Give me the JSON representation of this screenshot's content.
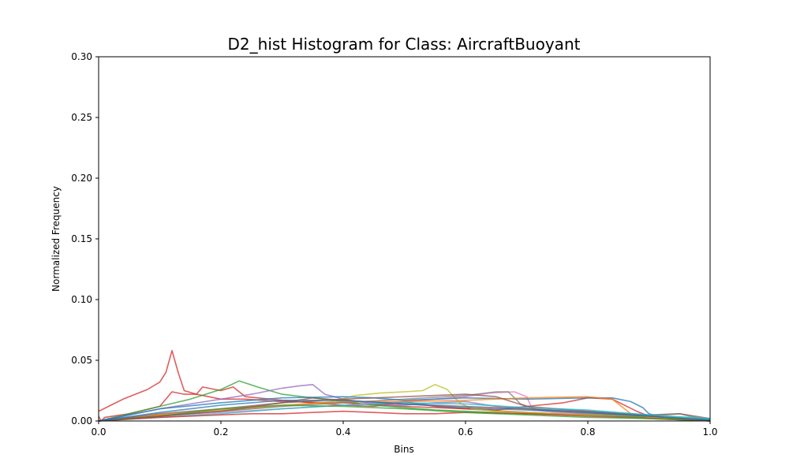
{
  "chart_data": {
    "type": "line",
    "title": "D2_hist Histogram for Class: AircraftBuoyant",
    "xlabel": "Bins",
    "ylabel": "Normalized Frequency",
    "xlim": [
      0.0,
      1.0
    ],
    "ylim": [
      0.0,
      0.3
    ],
    "xticks": [
      "0.0",
      "0.2",
      "0.4",
      "0.6",
      "0.8",
      "1.0"
    ],
    "yticks": [
      "0.00",
      "0.05",
      "0.10",
      "0.15",
      "0.20",
      "0.25",
      "0.30"
    ],
    "grid": false,
    "legend": "none",
    "series": [
      {
        "color": "#d62728",
        "points": [
          [
            0.0,
            0.008
          ],
          [
            0.02,
            0.013
          ],
          [
            0.04,
            0.018
          ],
          [
            0.06,
            0.022
          ],
          [
            0.08,
            0.026
          ],
          [
            0.1,
            0.032
          ],
          [
            0.11,
            0.04
          ],
          [
            0.12,
            0.058
          ],
          [
            0.13,
            0.04
          ],
          [
            0.14,
            0.025
          ],
          [
            0.16,
            0.022
          ],
          [
            0.18,
            0.02
          ],
          [
            0.2,
            0.018
          ],
          [
            0.24,
            0.018
          ],
          [
            0.3,
            0.016
          ],
          [
            0.4,
            0.015
          ],
          [
            0.5,
            0.012
          ],
          [
            0.6,
            0.01
          ],
          [
            0.7,
            0.007
          ],
          [
            0.8,
            0.005
          ],
          [
            0.9,
            0.003
          ],
          [
            1.0,
            0.0
          ]
        ]
      },
      {
        "color": "#d62728",
        "points": [
          [
            0.0,
            0.004
          ],
          [
            0.004,
            0.0
          ],
          [
            0.01,
            0.003
          ],
          [
            0.05,
            0.006
          ],
          [
            0.1,
            0.012
          ],
          [
            0.12,
            0.024
          ],
          [
            0.14,
            0.022
          ],
          [
            0.16,
            0.022
          ],
          [
            0.17,
            0.028
          ],
          [
            0.19,
            0.026
          ],
          [
            0.2,
            0.025
          ],
          [
            0.22,
            0.028
          ],
          [
            0.24,
            0.02
          ],
          [
            0.26,
            0.019
          ],
          [
            0.3,
            0.017
          ],
          [
            0.35,
            0.015
          ],
          [
            0.4,
            0.013
          ],
          [
            0.45,
            0.012
          ],
          [
            0.5,
            0.016
          ],
          [
            0.55,
            0.012
          ],
          [
            0.6,
            0.01
          ],
          [
            0.65,
            0.009
          ],
          [
            0.7,
            0.012
          ],
          [
            0.76,
            0.015
          ],
          [
            0.8,
            0.019
          ],
          [
            0.84,
            0.018
          ],
          [
            0.88,
            0.008
          ],
          [
            0.9,
            0.004
          ],
          [
            1.0,
            0.0
          ]
        ]
      },
      {
        "color": "#2ca02c",
        "points": [
          [
            0.0,
            0.0
          ],
          [
            0.05,
            0.006
          ],
          [
            0.1,
            0.012
          ],
          [
            0.15,
            0.018
          ],
          [
            0.2,
            0.026
          ],
          [
            0.23,
            0.033
          ],
          [
            0.26,
            0.028
          ],
          [
            0.3,
            0.022
          ],
          [
            0.35,
            0.019
          ],
          [
            0.4,
            0.016
          ],
          [
            0.45,
            0.013
          ],
          [
            0.5,
            0.011
          ],
          [
            0.55,
            0.009
          ],
          [
            0.6,
            0.008
          ],
          [
            0.7,
            0.006
          ],
          [
            0.8,
            0.005
          ],
          [
            0.9,
            0.003
          ],
          [
            1.0,
            0.0
          ]
        ]
      },
      {
        "color": "#9467bd",
        "points": [
          [
            0.0,
            0.0
          ],
          [
            0.05,
            0.005
          ],
          [
            0.1,
            0.01
          ],
          [
            0.15,
            0.014
          ],
          [
            0.2,
            0.018
          ],
          [
            0.25,
            0.022
          ],
          [
            0.3,
            0.027
          ],
          [
            0.33,
            0.029
          ],
          [
            0.35,
            0.03
          ],
          [
            0.37,
            0.022
          ],
          [
            0.4,
            0.018
          ],
          [
            0.45,
            0.014
          ],
          [
            0.5,
            0.013
          ],
          [
            0.55,
            0.015
          ],
          [
            0.6,
            0.016
          ],
          [
            0.65,
            0.012
          ],
          [
            0.7,
            0.01
          ],
          [
            0.8,
            0.008
          ],
          [
            0.9,
            0.004
          ],
          [
            1.0,
            0.0
          ]
        ]
      },
      {
        "color": "#bcbd22",
        "points": [
          [
            0.0,
            0.0
          ],
          [
            0.1,
            0.005
          ],
          [
            0.2,
            0.008
          ],
          [
            0.3,
            0.012
          ],
          [
            0.38,
            0.016
          ],
          [
            0.42,
            0.021
          ],
          [
            0.46,
            0.023
          ],
          [
            0.5,
            0.024
          ],
          [
            0.53,
            0.025
          ],
          [
            0.55,
            0.03
          ],
          [
            0.57,
            0.026
          ],
          [
            0.59,
            0.015
          ],
          [
            0.61,
            0.01
          ],
          [
            0.65,
            0.008
          ],
          [
            0.7,
            0.007
          ],
          [
            0.8,
            0.005
          ],
          [
            0.9,
            0.004
          ],
          [
            1.0,
            0.002
          ]
        ]
      },
      {
        "color": "#e377c2",
        "points": [
          [
            0.0,
            0.0
          ],
          [
            0.1,
            0.004
          ],
          [
            0.2,
            0.007
          ],
          [
            0.3,
            0.01
          ],
          [
            0.4,
            0.013
          ],
          [
            0.5,
            0.016
          ],
          [
            0.55,
            0.018
          ],
          [
            0.6,
            0.02
          ],
          [
            0.64,
            0.023
          ],
          [
            0.68,
            0.024
          ],
          [
            0.7,
            0.02
          ],
          [
            0.71,
            0.009
          ],
          [
            0.75,
            0.007
          ],
          [
            0.8,
            0.006
          ],
          [
            0.9,
            0.004
          ],
          [
            1.0,
            0.0
          ]
        ]
      },
      {
        "color": "#7f7f7f",
        "points": [
          [
            0.0,
            0.0
          ],
          [
            0.1,
            0.004
          ],
          [
            0.2,
            0.008
          ],
          [
            0.3,
            0.012
          ],
          [
            0.4,
            0.015
          ],
          [
            0.5,
            0.018
          ],
          [
            0.6,
            0.021
          ],
          [
            0.65,
            0.024
          ],
          [
            0.67,
            0.024
          ],
          [
            0.69,
            0.014
          ],
          [
            0.72,
            0.009
          ],
          [
            0.8,
            0.006
          ],
          [
            0.9,
            0.004
          ],
          [
            0.95,
            0.006
          ],
          [
            1.0,
            0.0
          ]
        ]
      },
      {
        "color": "#1f77b4",
        "points": [
          [
            0.0,
            0.0
          ],
          [
            0.1,
            0.01
          ],
          [
            0.2,
            0.015
          ],
          [
            0.3,
            0.019
          ],
          [
            0.4,
            0.02
          ],
          [
            0.45,
            0.019
          ],
          [
            0.5,
            0.017
          ],
          [
            0.55,
            0.018
          ],
          [
            0.6,
            0.019
          ],
          [
            0.7,
            0.018
          ],
          [
            0.8,
            0.019
          ],
          [
            0.84,
            0.019
          ],
          [
            0.87,
            0.016
          ],
          [
            0.89,
            0.011
          ],
          [
            0.9,
            0.006
          ],
          [
            0.92,
            0.003
          ],
          [
            1.0,
            0.001
          ]
        ]
      },
      {
        "color": "#ff7f0e",
        "points": [
          [
            0.0,
            0.0
          ],
          [
            0.1,
            0.005
          ],
          [
            0.2,
            0.009
          ],
          [
            0.3,
            0.013
          ],
          [
            0.4,
            0.016
          ],
          [
            0.5,
            0.016
          ],
          [
            0.6,
            0.017
          ],
          [
            0.7,
            0.019
          ],
          [
            0.8,
            0.02
          ],
          [
            0.84,
            0.018
          ],
          [
            0.87,
            0.006
          ],
          [
            0.9,
            0.003
          ],
          [
            1.0,
            0.0
          ]
        ]
      },
      {
        "color": "#8c564b",
        "points": [
          [
            0.0,
            0.0
          ],
          [
            0.1,
            0.006
          ],
          [
            0.2,
            0.01
          ],
          [
            0.3,
            0.015
          ],
          [
            0.4,
            0.018
          ],
          [
            0.5,
            0.02
          ],
          [
            0.6,
            0.022
          ],
          [
            0.65,
            0.02
          ],
          [
            0.7,
            0.012
          ],
          [
            0.8,
            0.008
          ],
          [
            0.9,
            0.005
          ],
          [
            0.95,
            0.006
          ],
          [
            1.0,
            0.002
          ]
        ]
      },
      {
        "color": "#17becf",
        "points": [
          [
            0.0,
            0.0
          ],
          [
            0.1,
            0.003
          ],
          [
            0.2,
            0.006
          ],
          [
            0.3,
            0.01
          ],
          [
            0.4,
            0.013
          ],
          [
            0.5,
            0.015
          ],
          [
            0.6,
            0.014
          ],
          [
            0.7,
            0.011
          ],
          [
            0.8,
            0.009
          ],
          [
            0.9,
            0.005
          ],
          [
            1.0,
            0.002
          ]
        ]
      },
      {
        "color": "#d62728",
        "points": [
          [
            0.0,
            0.0
          ],
          [
            0.1,
            0.003
          ],
          [
            0.2,
            0.005
          ],
          [
            0.25,
            0.006
          ],
          [
            0.3,
            0.006
          ],
          [
            0.35,
            0.007
          ],
          [
            0.4,
            0.008
          ],
          [
            0.45,
            0.007
          ],
          [
            0.5,
            0.006
          ],
          [
            0.55,
            0.006
          ],
          [
            0.6,
            0.007
          ],
          [
            0.7,
            0.006
          ],
          [
            0.8,
            0.004
          ],
          [
            0.9,
            0.002
          ],
          [
            1.0,
            0.0
          ]
        ]
      },
      {
        "color": "#2ca02c",
        "points": [
          [
            0.0,
            0.0
          ],
          [
            0.1,
            0.004
          ],
          [
            0.2,
            0.01
          ],
          [
            0.3,
            0.013
          ],
          [
            0.4,
            0.012
          ],
          [
            0.5,
            0.01
          ],
          [
            0.6,
            0.007
          ],
          [
            0.7,
            0.005
          ],
          [
            0.8,
            0.003
          ],
          [
            0.9,
            0.002
          ],
          [
            1.0,
            0.0
          ]
        ]
      },
      {
        "color": "#8c564b",
        "points": [
          [
            0.0,
            0.0
          ],
          [
            0.1,
            0.004
          ],
          [
            0.2,
            0.008
          ],
          [
            0.3,
            0.015
          ],
          [
            0.35,
            0.019
          ],
          [
            0.4,
            0.017
          ],
          [
            0.5,
            0.014
          ],
          [
            0.6,
            0.012
          ],
          [
            0.7,
            0.01
          ],
          [
            0.8,
            0.007
          ],
          [
            0.9,
            0.004
          ],
          [
            1.0,
            0.0
          ]
        ]
      },
      {
        "color": "#1f77b4",
        "points": [
          [
            0.0,
            0.0
          ],
          [
            0.1,
            0.007
          ],
          [
            0.2,
            0.013
          ],
          [
            0.3,
            0.017
          ],
          [
            0.4,
            0.017
          ],
          [
            0.5,
            0.014
          ],
          [
            0.6,
            0.011
          ],
          [
            0.7,
            0.009
          ],
          [
            0.8,
            0.007
          ],
          [
            0.9,
            0.004
          ],
          [
            1.0,
            0.001
          ]
        ]
      }
    ]
  }
}
